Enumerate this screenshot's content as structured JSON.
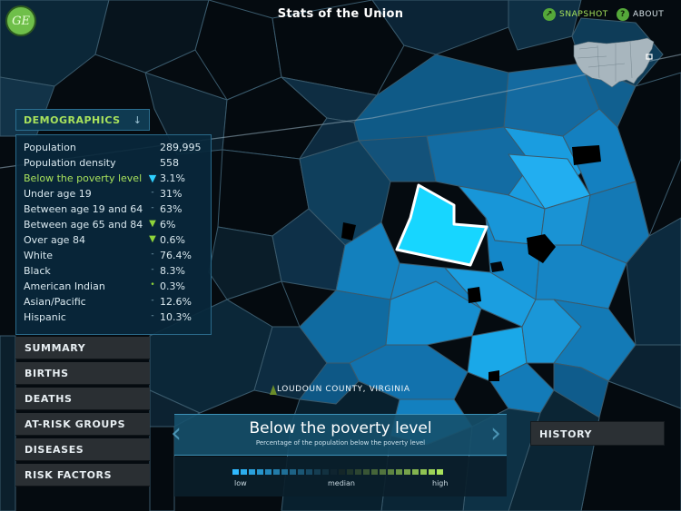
{
  "app": {
    "title": "Stats of the Union",
    "logo_text": "GE",
    "snapshot_label": "SNAPSHOT",
    "about_label": "ABOUT"
  },
  "demographics": {
    "header": "DEMOGRAPHICS",
    "rows": [
      {
        "name": "Population",
        "marker": "",
        "value": "289,995"
      },
      {
        "name": "Population density",
        "marker": "",
        "value": "558"
      },
      {
        "name": "Below the poverty level",
        "marker": "▼",
        "value": "3.1%"
      },
      {
        "name": "Under age 19",
        "marker": "-",
        "value": "31%"
      },
      {
        "name": "Between age 19 and 64",
        "marker": "-",
        "value": "63%"
      },
      {
        "name": "Between age 65 and 84",
        "marker": "▼",
        "value": "6%"
      },
      {
        "name": "Over age 84",
        "marker": "▼",
        "value": "0.6%"
      },
      {
        "name": "White",
        "marker": "-",
        "value": "76.4%"
      },
      {
        "name": "Black",
        "marker": "-",
        "value": "8.3%"
      },
      {
        "name": "American Indian",
        "marker": "•",
        "value": "0.3%"
      },
      {
        "name": "Asian/Pacific",
        "marker": "-",
        "value": "12.6%"
      },
      {
        "name": "Hispanic",
        "marker": "-",
        "value": "10.3%"
      }
    ]
  },
  "menu": {
    "items": [
      "SUMMARY",
      "BIRTHS",
      "DEATHS",
      "AT-RISK GROUPS",
      "DISEASES",
      "RISK FACTORS"
    ]
  },
  "map": {
    "county_label": "LOUDOUN COUNTY, VIRGINIA",
    "highlight_color": "#17d6ff",
    "outline_color": "#ffffff"
  },
  "legend": {
    "title": "Below the poverty level",
    "subtitle": "Percentage of the population below the poverty level",
    "low_label": "low",
    "median_label": "median",
    "high_label": "high",
    "low_color": "#2fb9ff",
    "high_color": "#a8e25c"
  },
  "history_label": "HISTORY"
}
